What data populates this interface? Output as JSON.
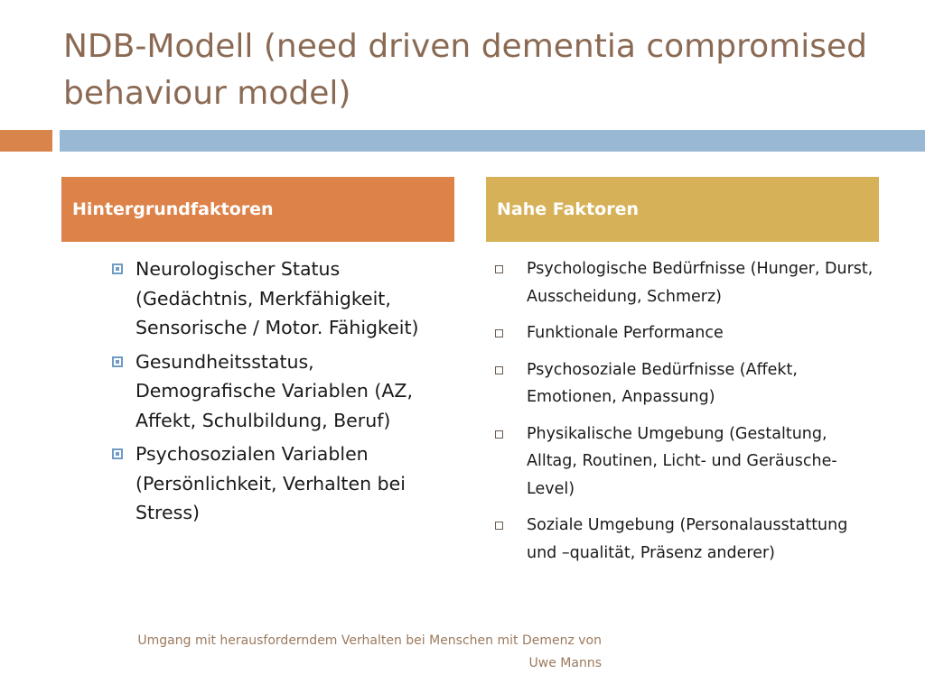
{
  "title": "NDB-Modell (need driven dementia compromised behaviour model)",
  "colors": {
    "title_text": "#8b6a54",
    "accent_orange": "#d9844a",
    "accent_blue": "#98b8d3",
    "header_left_bg": "#dd8248",
    "header_right_bg": "#d6b158",
    "bullet_blue": "#6f9cc5",
    "footer_text": "#9c7a5e"
  },
  "left_column": {
    "header": "Hintergrundfaktoren",
    "bullet_icon": "square-bullet-icon",
    "items": [
      "Neurologischer Status (Gedächtnis, Merkfähigkeit, Sensorische / Motor. Fähigkeit)",
      "Gesundheitsstatus, Demografische Variablen (AZ, Affekt, Schulbildung, Beruf)",
      "Psychosozialen Variablen (Persönlichkeit, Verhalten bei Stress)"
    ]
  },
  "right_column": {
    "header": "Nahe Faktoren",
    "bullet_icon": "hollow-square-bullet-icon",
    "items": [
      "Psychologische Bedürfnisse (Hunger, Durst, Ausscheidung, Schmerz)",
      "Funktionale Performance",
      "Psychosoziale Bedürfnisse (Affekt, Emotionen, Anpassung)",
      "Physikalische Umgebung (Gestaltung, Alltag, Routinen, Licht- und Geräusche- Level)",
      "Soziale Umgebung (Personalausstattung und –qualität, Präsenz anderer)"
    ]
  },
  "footer": {
    "line1": "Umgang mit herausforderndem Verhalten bei Menschen mit Demenz von",
    "line2": "Uwe Manns"
  }
}
